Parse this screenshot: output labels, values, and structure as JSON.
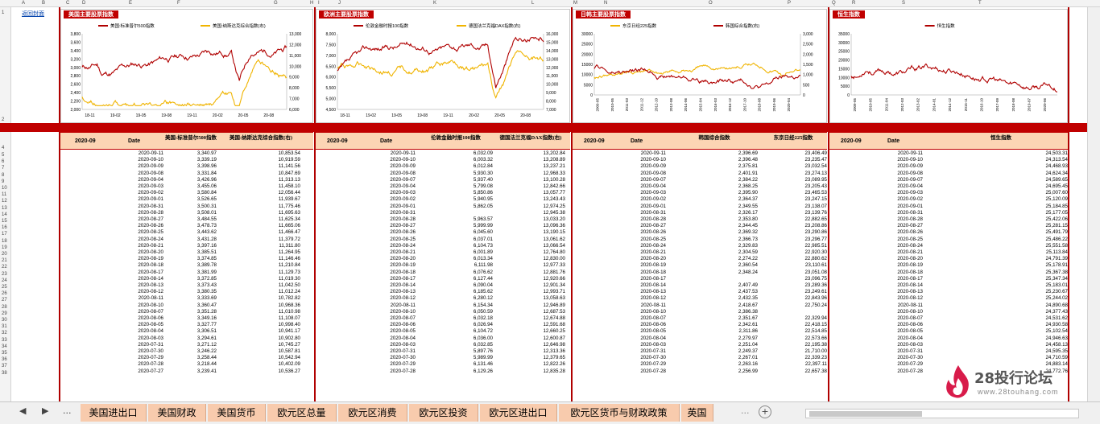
{
  "back_link": "返回封面",
  "column_letters": [
    "A",
    "B",
    "C",
    "D",
    "E",
    "F",
    "G",
    "H",
    "I",
    "J",
    "K",
    "L",
    "M",
    "N",
    "O",
    "P",
    "Q",
    "R",
    "S",
    "T"
  ],
  "colors": {
    "dark_red": "#b00000",
    "gold": "#f0b400",
    "header_fill": "#fcd5b4",
    "tab_fill": "#f8cbad"
  },
  "panels": [
    {
      "title": "美国主要股票指数",
      "chart_data": {
        "type": "line",
        "series": [
          {
            "name": "美国:标准普尔500指数"
          },
          {
            "name": "美国:纳斯达克综合指数(右)"
          }
        ],
        "x_ticks": [
          "18-11",
          "19-02",
          "19-05",
          "19-08",
          "19-11",
          "20-02",
          "20-05",
          "20-08"
        ],
        "y_left_ticks": [
          "3,800",
          "3,600",
          "3,400",
          "3,200",
          "3,000",
          "2,800",
          "2,600",
          "2,400",
          "2,200",
          "2,000"
        ],
        "y_right_ticks": [
          "13,000",
          "12,000",
          "11,000",
          "10,000",
          "9,000",
          "8,000",
          "7,000",
          "6,000"
        ],
        "grid": false,
        "legend": "top"
      },
      "header": {
        "period": "2020-09",
        "date": "Date",
        "col1": "美国:标准普尔500指数",
        "col2": "美国:纳斯达克综合指数(右)"
      },
      "rows": [
        [
          "2020-09-11",
          "3,340.97",
          "10,853.54"
        ],
        [
          "2020-09-10",
          "3,339.19",
          "10,919.59"
        ],
        [
          "2020-09-09",
          "3,398.96",
          "11,141.56"
        ],
        [
          "2020-09-08",
          "3,331.84",
          "10,847.69"
        ],
        [
          "2020-09-04",
          "3,426.96",
          "11,313.13"
        ],
        [
          "2020-09-03",
          "3,455.06",
          "11,458.10"
        ],
        [
          "2020-09-02",
          "3,580.84",
          "12,056.44"
        ],
        [
          "2020-09-01",
          "3,526.65",
          "11,939.67"
        ],
        [
          "2020-08-31",
          "3,500.31",
          "11,775.46"
        ],
        [
          "2020-08-28",
          "3,508.01",
          "11,695.63"
        ],
        [
          "2020-08-27",
          "3,484.55",
          "11,625.34"
        ],
        [
          "2020-08-26",
          "3,478.73",
          "11,665.06"
        ],
        [
          "2020-08-25",
          "3,443.62",
          "11,466.47"
        ],
        [
          "2020-08-24",
          "3,431.28",
          "11,379.72"
        ],
        [
          "2020-08-21",
          "3,397.16",
          "11,311.80"
        ],
        [
          "2020-08-20",
          "3,385.51",
          "11,264.95"
        ],
        [
          "2020-08-19",
          "3,374.85",
          "11,146.46"
        ],
        [
          "2020-08-18",
          "3,389.78",
          "11,210.84"
        ],
        [
          "2020-08-17",
          "3,381.99",
          "11,129.73"
        ],
        [
          "2020-08-14",
          "3,372.85",
          "11,019.30"
        ],
        [
          "2020-08-13",
          "3,373.43",
          "11,042.50"
        ],
        [
          "2020-08-12",
          "3,380.35",
          "11,012.24"
        ],
        [
          "2020-08-11",
          "3,333.69",
          "10,782.82"
        ],
        [
          "2020-08-10",
          "3,360.47",
          "10,968.36"
        ],
        [
          "2020-08-07",
          "3,351.28",
          "11,010.98"
        ],
        [
          "2020-08-06",
          "3,349.16",
          "11,108.07"
        ],
        [
          "2020-08-05",
          "3,327.77",
          "10,998.40"
        ],
        [
          "2020-08-04",
          "3,306.51",
          "10,941.17"
        ],
        [
          "2020-08-03",
          "3,294.61",
          "10,902.80"
        ],
        [
          "2020-07-31",
          "3,271.12",
          "10,745.27"
        ],
        [
          "2020-07-30",
          "3,246.22",
          "10,587.81"
        ],
        [
          "2020-07-29",
          "3,258.44",
          "10,542.94"
        ],
        [
          "2020-07-28",
          "3,218.44",
          "10,402.09"
        ],
        [
          "2020-07-27",
          "3,239.41",
          "10,536.27"
        ]
      ]
    },
    {
      "title": "欧洲主要股票指数",
      "chart_data": {
        "type": "line",
        "series": [
          {
            "name": "伦敦金融时报100指数"
          },
          {
            "name": "德国法兰克福DAX指数(右)"
          }
        ],
        "x_ticks": [
          "18-11",
          "19-02",
          "19-05",
          "19-08",
          "19-11",
          "20-02",
          "20-05",
          "20-08"
        ],
        "y_left_ticks": [
          "8,000",
          "7,500",
          "7,000",
          "6,500",
          "6,000",
          "5,500",
          "5,000",
          "4,500"
        ],
        "y_right_ticks": [
          "16,000",
          "15,000",
          "14,000",
          "13,000",
          "12,000",
          "11,000",
          "10,000",
          "9,000",
          "8,000",
          "7,000"
        ],
        "grid": false,
        "legend": "top"
      },
      "header": {
        "period": "2020-09",
        "date": "Date",
        "col1": "伦敦金融时报100指数",
        "col2": "德国法兰克福DAX指数(右)"
      },
      "rows": [
        [
          "2020-09-11",
          "6,032.09",
          "13,202.84"
        ],
        [
          "2020-09-10",
          "6,003.32",
          "13,208.89"
        ],
        [
          "2020-09-09",
          "6,012.84",
          "13,237.21"
        ],
        [
          "2020-09-08",
          "5,930.30",
          "12,968.33"
        ],
        [
          "2020-09-07",
          "5,937.40",
          "13,100.28"
        ],
        [
          "2020-09-04",
          "5,799.08",
          "12,842.66"
        ],
        [
          "2020-09-03",
          "5,850.86",
          "13,057.77"
        ],
        [
          "2020-09-02",
          "5,940.95",
          "13,243.43"
        ],
        [
          "2020-09-01",
          "5,862.05",
          "12,974.25"
        ],
        [
          "2020-08-31",
          "",
          "12,945.38"
        ],
        [
          "2020-08-28",
          "5,963.57",
          "13,033.20"
        ],
        [
          "2020-08-27",
          "5,999.99",
          "13,096.36"
        ],
        [
          "2020-08-26",
          "6,045.60",
          "13,190.15"
        ],
        [
          "2020-08-25",
          "6,037.01",
          "13,061.62"
        ],
        [
          "2020-08-24",
          "6,104.73",
          "13,066.54"
        ],
        [
          "2020-08-21",
          "6,001.89",
          "12,764.80"
        ],
        [
          "2020-08-20",
          "6,013.34",
          "12,830.00"
        ],
        [
          "2020-08-19",
          "6,111.98",
          "12,977.33"
        ],
        [
          "2020-08-18",
          "6,076.62",
          "12,881.76"
        ],
        [
          "2020-08-17",
          "6,127.44",
          "12,920.66"
        ],
        [
          "2020-08-14",
          "6,090.04",
          "12,901.34"
        ],
        [
          "2020-08-13",
          "6,185.62",
          "12,993.71"
        ],
        [
          "2020-08-12",
          "6,280.12",
          "13,058.63"
        ],
        [
          "2020-08-11",
          "6,154.34",
          "12,946.89"
        ],
        [
          "2020-08-10",
          "6,050.59",
          "12,687.53"
        ],
        [
          "2020-08-07",
          "6,032.18",
          "12,674.88"
        ],
        [
          "2020-08-06",
          "6,026.94",
          "12,591.68"
        ],
        [
          "2020-08-05",
          "6,104.72",
          "12,660.25"
        ],
        [
          "2020-08-04",
          "6,036.00",
          "12,600.87"
        ],
        [
          "2020-08-03",
          "6,032.85",
          "12,646.98"
        ],
        [
          "2020-07-31",
          "5,897.76",
          "12,313.36"
        ],
        [
          "2020-07-30",
          "5,989.99",
          "12,379.65"
        ],
        [
          "2020-07-29",
          "6,131.46",
          "12,822.26"
        ],
        [
          "2020-07-28",
          "6,129.26",
          "12,835.28"
        ]
      ]
    },
    {
      "title": "日韩主要股票指数",
      "chart_data": {
        "type": "line",
        "series": [
          {
            "name": "东京日经225指数"
          },
          {
            "name": "韩国综合指数(右)"
          }
        ],
        "x_ticks": [
          "2009-05",
          "2010-05",
          "2011-03",
          "2011-12",
          "2012-10",
          "2013-08",
          "2014-06",
          "2015-04",
          "2016-03",
          "2016-12",
          "2017-10",
          "2018-08",
          "2019-06",
          "2020-04"
        ],
        "y_left_ticks": [
          "30000",
          "25000",
          "20000",
          "15000",
          "10000",
          "5000",
          "0"
        ],
        "y_right_ticks": [
          "3,000",
          "2,500",
          "2,000",
          "1,500",
          "1,000",
          "500",
          "0"
        ],
        "grid": false,
        "legend": "top"
      },
      "header": {
        "period": "2020-09",
        "date": "Date",
        "col1": "韩国综合指数",
        "col2": "东京日经225指数"
      },
      "rows": [
        [
          "2020-09-11",
          "2,396.69",
          "23,406.49"
        ],
        [
          "2020-09-10",
          "2,396.48",
          "23,235.47"
        ],
        [
          "2020-09-09",
          "2,375.81",
          "23,032.54"
        ],
        [
          "2020-09-08",
          "2,401.91",
          "23,274.13"
        ],
        [
          "2020-09-07",
          "2,384.22",
          "23,089.95"
        ],
        [
          "2020-09-04",
          "2,368.25",
          "23,205.43"
        ],
        [
          "2020-09-03",
          "2,395.90",
          "23,465.53"
        ],
        [
          "2020-09-02",
          "2,364.37",
          "23,247.15"
        ],
        [
          "2020-09-01",
          "2,349.55",
          "23,138.07"
        ],
        [
          "2020-08-31",
          "2,326.17",
          "23,139.76"
        ],
        [
          "2020-08-28",
          "2,353.80",
          "22,882.65"
        ],
        [
          "2020-08-27",
          "2,344.45",
          "23,208.86"
        ],
        [
          "2020-08-26",
          "2,369.32",
          "23,290.86"
        ],
        [
          "2020-08-25",
          "2,366.73",
          "23,296.77"
        ],
        [
          "2020-08-24",
          "2,329.83",
          "22,985.51"
        ],
        [
          "2020-08-21",
          "2,304.59",
          "22,920.30"
        ],
        [
          "2020-08-20",
          "2,274.22",
          "22,880.62"
        ],
        [
          "2020-08-19",
          "2,360.54",
          "23,110.61"
        ],
        [
          "2020-08-18",
          "2,348.24",
          "23,051.08"
        ],
        [
          "2020-08-17",
          "",
          "23,096.75"
        ],
        [
          "2020-08-14",
          "2,407.49",
          "23,289.36"
        ],
        [
          "2020-08-13",
          "2,437.53",
          "23,249.61"
        ],
        [
          "2020-08-12",
          "2,432.35",
          "22,843.96"
        ],
        [
          "2020-08-11",
          "2,418.67",
          "22,750.24"
        ],
        [
          "2020-08-10",
          "2,386.38",
          ""
        ],
        [
          "2020-08-07",
          "2,351.67",
          "22,329.94"
        ],
        [
          "2020-08-06",
          "2,342.61",
          "22,418.15"
        ],
        [
          "2020-08-05",
          "2,311.86",
          "22,514.85"
        ],
        [
          "2020-08-04",
          "2,279.97",
          "22,573.66"
        ],
        [
          "2020-08-03",
          "2,251.04",
          "22,195.38"
        ],
        [
          "2020-07-31",
          "2,249.37",
          "21,710.00"
        ],
        [
          "2020-07-30",
          "2,267.01",
          "22,339.23"
        ],
        [
          "2020-07-29",
          "2,263.16",
          "22,397.11"
        ],
        [
          "2020-07-28",
          "2,256.99",
          "22,657.38"
        ]
      ]
    },
    {
      "title": "恒生指数",
      "chart_data": {
        "type": "line",
        "series": [
          {
            "name": "恒生指数"
          }
        ],
        "x_ticks": [
          "2009-05",
          "2010-05",
          "2011-04",
          "2012-03",
          "2013-02",
          "2014-01",
          "2014-12",
          "2015-11",
          "2016-10",
          "2017-09",
          "2018-08",
          "2019-07",
          "2020-06"
        ],
        "y_left_ticks": [
          "35000",
          "30000",
          "25000",
          "20000",
          "15000",
          "10000",
          "5000",
          "0"
        ],
        "grid": false,
        "legend": "top"
      },
      "header": {
        "period": "2020-09",
        "date": "Date",
        "col1": "恒生指数"
      },
      "rows": [
        [
          "2020-09-11",
          "24,503.31"
        ],
        [
          "2020-09-10",
          "24,313.54"
        ],
        [
          "2020-09-09",
          "24,468.93"
        ],
        [
          "2020-09-08",
          "24,624.34"
        ],
        [
          "2020-09-07",
          "24,589.65"
        ],
        [
          "2020-09-04",
          "24,695.45"
        ],
        [
          "2020-09-03",
          "25,007.60"
        ],
        [
          "2020-09-02",
          "25,120.09"
        ],
        [
          "2020-09-01",
          "25,184.85"
        ],
        [
          "2020-08-31",
          "25,177.05"
        ],
        [
          "2020-08-28",
          "25,422.06"
        ],
        [
          "2020-08-27",
          "25,281.15"
        ],
        [
          "2020-08-26",
          "25,491.79"
        ],
        [
          "2020-08-25",
          "25,486.22"
        ],
        [
          "2020-08-24",
          "25,551.58"
        ],
        [
          "2020-08-21",
          "25,113.84"
        ],
        [
          "2020-08-20",
          "24,791.39"
        ],
        [
          "2020-08-19",
          "25,178.91"
        ],
        [
          "2020-08-18",
          "25,367.38"
        ],
        [
          "2020-08-17",
          "25,347.34"
        ],
        [
          "2020-08-14",
          "25,183.01"
        ],
        [
          "2020-08-13",
          "25,230.67"
        ],
        [
          "2020-08-12",
          "25,244.02"
        ],
        [
          "2020-08-11",
          "24,890.68"
        ],
        [
          "2020-08-10",
          "24,377.43"
        ],
        [
          "2020-08-07",
          "24,531.62"
        ],
        [
          "2020-08-06",
          "24,930.58"
        ],
        [
          "2020-08-05",
          "25,102.54"
        ],
        [
          "2020-08-04",
          "24,946.63"
        ],
        [
          "2020-08-03",
          "24,458.13"
        ],
        [
          "2020-07-31",
          "24,595.35"
        ],
        [
          "2020-07-30",
          "24,710.59"
        ],
        [
          "2020-07-29",
          "24,883.14"
        ],
        [
          "2020-07-28",
          "24,772.76"
        ]
      ]
    }
  ],
  "sheet_tabs": [
    "美国进出口",
    "美国财政",
    "美国货币",
    "欧元区总量",
    "欧元区消费",
    "欧元区投资",
    "欧元区进出口",
    "欧元区货币与财政政策",
    "英国"
  ],
  "nav": {
    "prev": "◀",
    "next": "▶",
    "more": "...",
    "add": "+"
  },
  "watermark": {
    "brand": "28投行论坛",
    "url": "www.28touhang.com"
  }
}
